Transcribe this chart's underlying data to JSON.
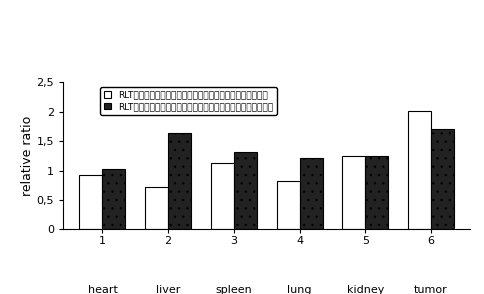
{
  "categories_num": [
    "1",
    "2",
    "3",
    "4",
    "5",
    "6"
  ],
  "categories_name": [
    "heart",
    "liver",
    "spleen",
    "lung",
    "kidney",
    "tumor"
  ],
  "white_values": [
    0.93,
    0.72,
    1.12,
    0.82,
    1.25,
    2.02
  ],
  "dotted_values": [
    1.03,
    1.63,
    1.32,
    1.22,
    1.25,
    1.7
  ],
  "legend_white": "RLT多肽介导的多西紫杉醇肿瘤靶向亚微乳与传统亚微乳比较",
  "legend_dotted": "RLT多肽介导的多西紫杉醇肿瘤靶向亚微乳与阳离子亚微乳比较",
  "ylabel": "relative ratio",
  "ylim": [
    0,
    2.5
  ],
  "yticks": [
    0,
    0.5,
    1,
    1.5,
    2,
    2.5
  ],
  "ytick_labels": [
    "0",
    "0,5",
    "1",
    "1,5",
    "2",
    "2,5"
  ],
  "bar_width": 0.35,
  "background_color": "#ffffff",
  "edge_color": "#000000",
  "font_size_tick": 8,
  "font_size_legend": 6.5,
  "font_size_ylabel": 9
}
